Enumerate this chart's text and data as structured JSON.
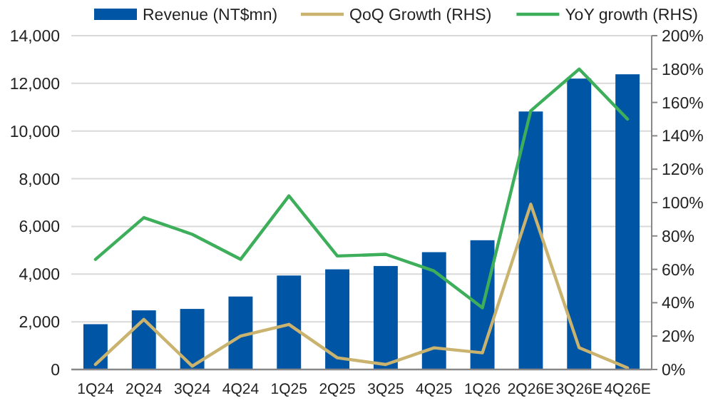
{
  "chart_data": {
    "type": "bar",
    "categories": [
      "1Q24",
      "2Q24",
      "3Q24",
      "4Q24",
      "1Q25",
      "2Q25",
      "3Q25",
      "4Q25",
      "1Q26",
      "2Q26E",
      "3Q26E",
      "4Q26E"
    ],
    "series": [
      {
        "name": "Revenue (NT$mn)",
        "color": "#0055a5",
        "values": [
          1900,
          2480,
          2540,
          3060,
          3940,
          4200,
          4340,
          4920,
          5420,
          10820,
          12200,
          12380
        ]
      },
      {
        "name": "QoQ Growth (RHS)",
        "type": "line",
        "axis": "y2",
        "color": "#c9b36e",
        "values": [
          3,
          30,
          2,
          20,
          27,
          7,
          3,
          13,
          10,
          99,
          13,
          1
        ]
      },
      {
        "name": "YoY growth (RHS)",
        "type": "line",
        "axis": "y2",
        "color": "#3dae5a",
        "values": [
          66,
          91,
          81,
          66,
          104,
          68,
          69,
          59,
          37,
          155,
          180,
          150
        ]
      }
    ],
    "ylim": [
      0,
      14000
    ],
    "yticks": [
      {
        "value": 0,
        "label": "0"
      },
      {
        "value": 2000,
        "label": "2,000"
      },
      {
        "value": 4000,
        "label": "4,000"
      },
      {
        "value": 6000,
        "label": "6,000"
      },
      {
        "value": 8000,
        "label": "8,000"
      },
      {
        "value": 10000,
        "label": "10,000"
      },
      {
        "value": 12000,
        "label": "12,000"
      },
      {
        "value": 14000,
        "label": "14,000"
      }
    ],
    "y2lim": [
      0,
      200
    ],
    "y2ticks": [
      {
        "value": 0,
        "label": "0%"
      },
      {
        "value": 20,
        "label": "20%"
      },
      {
        "value": 40,
        "label": "40%"
      },
      {
        "value": 60,
        "label": "60%"
      },
      {
        "value": 80,
        "label": "80%"
      },
      {
        "value": 100,
        "label": "100%"
      },
      {
        "value": 120,
        "label": "120%"
      },
      {
        "value": 140,
        "label": "140%"
      },
      {
        "value": 160,
        "label": "160%"
      },
      {
        "value": 180,
        "label": "180%"
      },
      {
        "value": 200,
        "label": "200%"
      }
    ],
    "grid": "y",
    "legend": "top",
    "marker": "none"
  }
}
